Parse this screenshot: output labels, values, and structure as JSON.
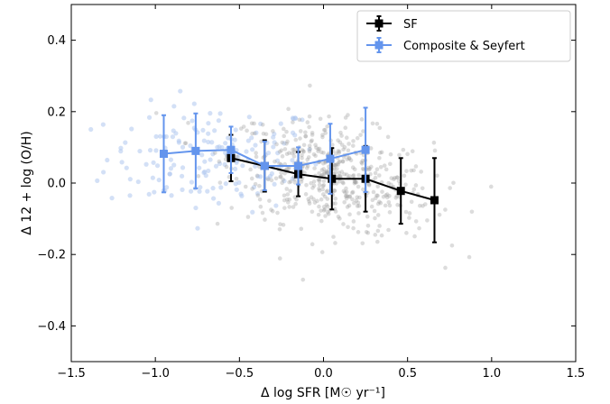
{
  "chart_data": {
    "type": "scatter",
    "title": "",
    "xlabel": "Δ log SFR [M☉ yr⁻¹]",
    "ylabel": "Δ 12 + log (O/H)",
    "xlim": [
      -1.5,
      1.5
    ],
    "ylim": [
      -0.5,
      0.5
    ],
    "x_ticks": [
      -1.5,
      -1.0,
      -0.5,
      0.0,
      0.5,
      1.0,
      1.5
    ],
    "y_ticks": [
      -0.4,
      -0.2,
      0.0,
      0.2,
      0.4
    ],
    "x_tick_labels": [
      "−1.5",
      "−1.0",
      "−0.5",
      "0.0",
      "0.5",
      "1.0",
      "1.5"
    ],
    "y_tick_labels": [
      "−0.4",
      "−0.2",
      "0.0",
      "0.2",
      "0.4"
    ],
    "grid": false,
    "legend_position": "top-right",
    "series": [
      {
        "name": "SF",
        "color": "#000000",
        "marker": "square",
        "x": [
          -0.55,
          -0.35,
          -0.15,
          0.05,
          0.25,
          0.46,
          0.66
        ],
        "y": [
          0.07,
          0.048,
          0.025,
          0.012,
          0.012,
          -0.022,
          -0.048
        ],
        "yerr": [
          0.065,
          0.072,
          0.062,
          0.086,
          0.092,
          0.092,
          0.118
        ]
      },
      {
        "name": "Composite & Seyfert",
        "color": "#6495ed",
        "marker": "square",
        "x": [
          -0.95,
          -0.76,
          -0.55,
          -0.35,
          -0.15,
          0.04,
          0.25
        ],
        "y": [
          0.082,
          0.09,
          0.093,
          0.048,
          0.048,
          0.068,
          0.093
        ],
        "yerr": [
          0.108,
          0.105,
          0.065,
          0.068,
          0.052,
          0.098,
          0.118
        ]
      }
    ],
    "background_points": {
      "sf_color": "#9a9a9a",
      "composite_color": "#aec6ef"
    }
  }
}
